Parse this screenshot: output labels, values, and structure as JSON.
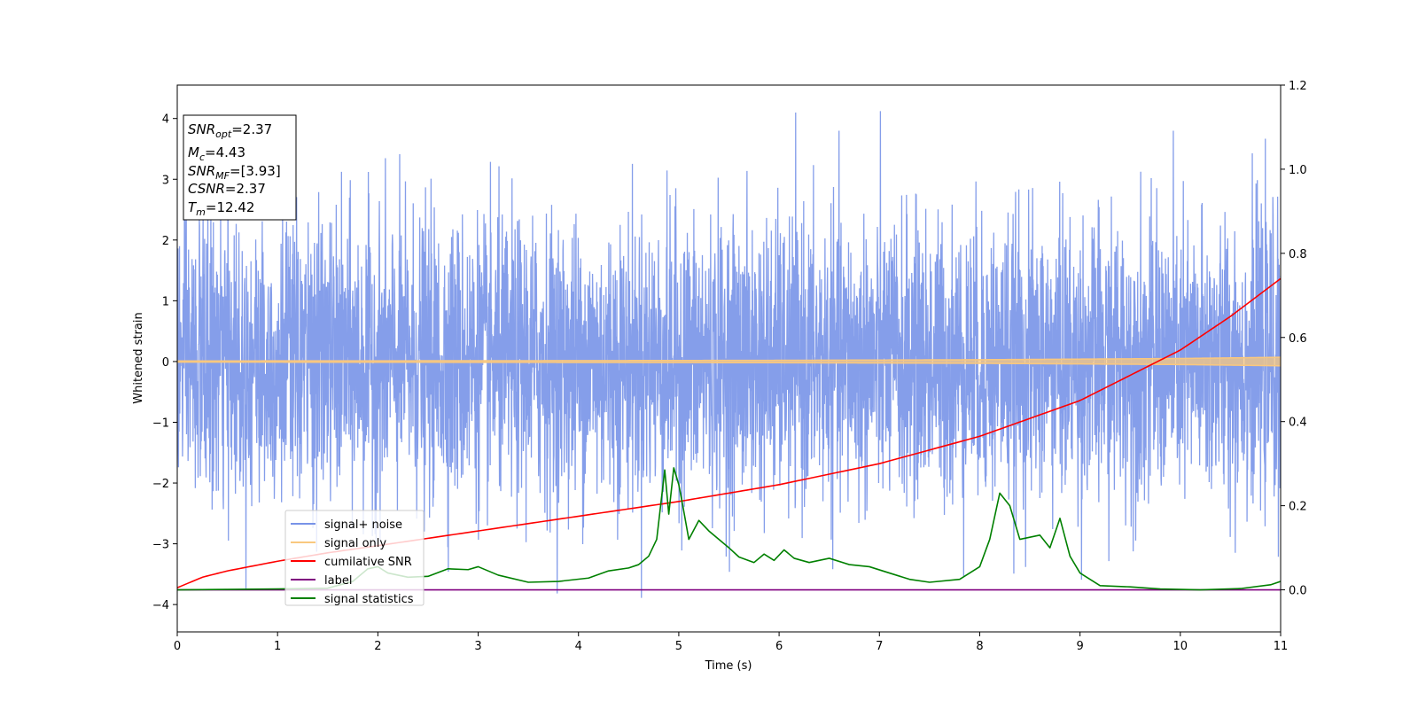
{
  "chart_data": {
    "type": "line",
    "xlabel": "Time (s)",
    "ylabel": "Whitened strain",
    "xlim": [
      0,
      11
    ],
    "ylim": [
      -4.45,
      4.55
    ],
    "y2lim": [
      -0.1,
      1.2
    ],
    "x_ticks": [
      "0",
      "1",
      "2",
      "3",
      "4",
      "5",
      "6",
      "7",
      "8",
      "9",
      "10",
      "11"
    ],
    "y_ticks": [
      "−4",
      "−3",
      "−2",
      "−1",
      "0",
      "1",
      "2",
      "3",
      "4"
    ],
    "y2_ticks": [
      "0.0",
      "0.2",
      "0.4",
      "0.6",
      "0.8",
      "1.0",
      "1.2"
    ],
    "grid": false,
    "legend_position": "lower-left",
    "info_box": {
      "snr_opt": {
        "base": "SNR",
        "sub": "opt",
        "value": "=2.37"
      },
      "mc": {
        "base": "M",
        "sub": "c",
        "value": "=4.43"
      },
      "snr_mf": {
        "base": "SNR",
        "sub": "MF",
        "value": "=[3.93]"
      },
      "csnr": {
        "base": "CSNR",
        "value": "=2.37"
      },
      "tm": {
        "base": "T",
        "sub": "m",
        "value": "=12.42"
      }
    },
    "series": [
      {
        "name": "signal+ noise",
        "color": "#7893e8",
        "axis": "left",
        "noise_envelope": {
          "typical_low": -2.0,
          "typical_high": 2.0,
          "min": -4.0,
          "max": 4.2
        }
      },
      {
        "name": "signal only",
        "color": "#f9c87f",
        "axis": "left",
        "x": [
          0,
          2,
          4,
          6,
          8,
          9,
          10,
          11
        ],
        "amplitude": [
          0.01,
          0.012,
          0.015,
          0.02,
          0.03,
          0.04,
          0.05,
          0.07
        ]
      },
      {
        "name": "cumilative SNR",
        "color": "#ff0000",
        "axis": "right",
        "x": [
          0,
          0.25,
          0.5,
          1,
          1.5,
          2,
          3,
          4,
          5,
          6,
          7,
          8,
          9,
          10,
          10.5,
          11
        ],
        "values": [
          0.005,
          0.03,
          0.045,
          0.068,
          0.088,
          0.105,
          0.14,
          0.175,
          0.21,
          0.25,
          0.3,
          0.365,
          0.45,
          0.57,
          0.65,
          0.74
        ]
      },
      {
        "name": "label",
        "color": "#800080",
        "axis": "right",
        "x": [
          0,
          11
        ],
        "values": [
          0,
          0
        ]
      },
      {
        "name": "signal statistics",
        "color": "#008000",
        "axis": "right",
        "x": [
          0,
          0.5,
          1.0,
          1.5,
          1.75,
          1.9,
          2.0,
          2.1,
          2.3,
          2.5,
          2.7,
          2.9,
          3.0,
          3.2,
          3.5,
          3.8,
          4.1,
          4.3,
          4.5,
          4.6,
          4.7,
          4.78,
          4.86,
          4.9,
          4.95,
          5.0,
          5.04,
          5.1,
          5.2,
          5.3,
          5.4,
          5.5,
          5.6,
          5.75,
          5.85,
          5.95,
          6.05,
          6.15,
          6.3,
          6.5,
          6.7,
          6.9,
          7.1,
          7.3,
          7.5,
          7.8,
          8.0,
          8.1,
          8.2,
          8.3,
          8.4,
          8.6,
          8.7,
          8.8,
          8.9,
          9.0,
          9.2,
          9.5,
          9.8,
          10.2,
          10.6,
          10.9,
          11.0
        ],
        "values": [
          0.0,
          0.001,
          0.002,
          0.004,
          0.02,
          0.05,
          0.055,
          0.04,
          0.03,
          0.032,
          0.05,
          0.048,
          0.055,
          0.035,
          0.018,
          0.02,
          0.028,
          0.045,
          0.052,
          0.06,
          0.08,
          0.12,
          0.285,
          0.18,
          0.29,
          0.25,
          0.2,
          0.12,
          0.165,
          0.14,
          0.12,
          0.1,
          0.078,
          0.065,
          0.085,
          0.07,
          0.095,
          0.075,
          0.065,
          0.075,
          0.06,
          0.055,
          0.04,
          0.025,
          0.018,
          0.025,
          0.055,
          0.12,
          0.23,
          0.2,
          0.12,
          0.13,
          0.1,
          0.17,
          0.08,
          0.04,
          0.01,
          0.007,
          0.002,
          0.0,
          0.003,
          0.012,
          0.02
        ]
      }
    ]
  }
}
